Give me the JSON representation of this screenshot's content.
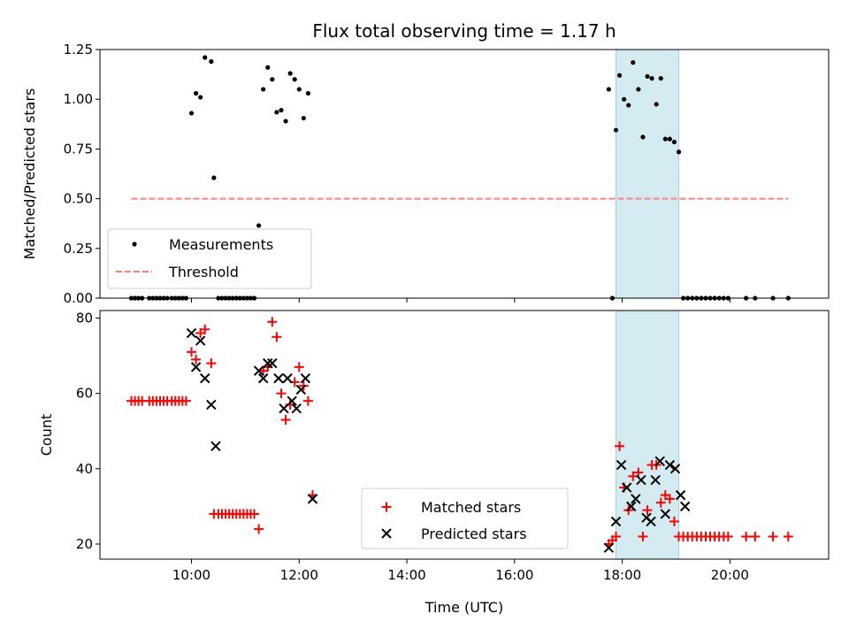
{
  "chart_data": [
    {
      "type": "scatter",
      "title": "Flux total observing time = 1.17 h",
      "xlabel": "",
      "ylabel": "Matched/Predicted stars",
      "xlim": [
        "08:18",
        "21:50"
      ],
      "ylim": [
        0,
        1.25
      ],
      "yticks": [
        "0.00",
        "0.25",
        "0.50",
        "0.75",
        "1.00",
        "1.25"
      ],
      "legend_position": "lower-left",
      "shaded_interval": [
        "17:53",
        "19:03"
      ],
      "shade_color": "#d5ebf2",
      "series": [
        {
          "name": "Measurements",
          "marker": "dot",
          "color": "#000000",
          "points": [
            [
              "08:53",
              0
            ],
            [
              "08:57",
              0
            ],
            [
              "09:01",
              0
            ],
            [
              "09:05",
              0
            ],
            [
              "09:13",
              0
            ],
            [
              "09:17",
              0
            ],
            [
              "09:21",
              0
            ],
            [
              "09:25",
              0
            ],
            [
              "09:29",
              0
            ],
            [
              "09:33",
              0
            ],
            [
              "09:38",
              0
            ],
            [
              "09:42",
              0
            ],
            [
              "09:46",
              0
            ],
            [
              "09:50",
              0
            ],
            [
              "09:54",
              0
            ],
            [
              "10:00",
              0.93
            ],
            [
              "10:05",
              1.03
            ],
            [
              "10:10",
              1.01
            ],
            [
              "10:15",
              1.21
            ],
            [
              "10:22",
              1.19
            ],
            [
              "10:25",
              0.605
            ],
            [
              "10:30",
              0
            ],
            [
              "10:34",
              0
            ],
            [
              "10:38",
              0
            ],
            [
              "10:42",
              0
            ],
            [
              "10:46",
              0
            ],
            [
              "10:50",
              0
            ],
            [
              "10:54",
              0
            ],
            [
              "10:58",
              0
            ],
            [
              "11:02",
              0
            ],
            [
              "11:06",
              0
            ],
            [
              "11:10",
              0
            ],
            [
              "11:15",
              0.365
            ],
            [
              "11:20",
              1.05
            ],
            [
              "11:25",
              1.16
            ],
            [
              "11:30",
              1.1
            ],
            [
              "11:35",
              0.935
            ],
            [
              "11:40",
              0.945
            ],
            [
              "11:45",
              0.89
            ],
            [
              "11:50",
              1.13
            ],
            [
              "11:55",
              1.1
            ],
            [
              "12:00",
              1.05
            ],
            [
              "12:05",
              0.905
            ],
            [
              "12:10",
              1.03
            ],
            [
              "17:45",
              1.05
            ],
            [
              "17:49",
              0
            ],
            [
              "17:53",
              0.845
            ],
            [
              "17:57",
              1.12
            ],
            [
              "18:02",
              1.0
            ],
            [
              "18:07",
              0.97
            ],
            [
              "18:12",
              1.185
            ],
            [
              "18:18",
              1.05
            ],
            [
              "18:23",
              0.81
            ],
            [
              "18:28",
              1.115
            ],
            [
              "18:33",
              1.105
            ],
            [
              "18:38",
              0.975
            ],
            [
              "18:43",
              1.105
            ],
            [
              "18:48",
              0.8
            ],
            [
              "18:53",
              0.8
            ],
            [
              "18:58",
              0.785
            ],
            [
              "19:03",
              0.735
            ],
            [
              "19:08",
              0
            ],
            [
              "19:13",
              0
            ],
            [
              "19:18",
              0
            ],
            [
              "19:23",
              0
            ],
            [
              "19:28",
              0
            ],
            [
              "19:33",
              0
            ],
            [
              "19:38",
              0
            ],
            [
              "19:43",
              0
            ],
            [
              "19:48",
              0
            ],
            [
              "19:53",
              0
            ],
            [
              "19:58",
              0
            ],
            [
              "20:18",
              0
            ],
            [
              "20:28",
              0
            ],
            [
              "20:48",
              0
            ],
            [
              "21:05",
              0
            ]
          ]
        },
        {
          "name": "Threshold",
          "marker": "dashed-line",
          "color": "#ff7f7f",
          "points": [
            [
              "08:53",
              0.5
            ],
            [
              "21:05",
              0.5
            ]
          ]
        }
      ]
    },
    {
      "type": "scatter",
      "title": "",
      "xlabel": "Time (UTC)",
      "ylabel": "Count",
      "xlim": [
        "08:18",
        "21:50"
      ],
      "ylim": [
        16,
        82
      ],
      "yticks": [
        "20",
        "40",
        "60",
        "80"
      ],
      "xticks": [
        "10:00",
        "12:00",
        "14:00",
        "16:00",
        "18:00",
        "20:00"
      ],
      "legend_position": "lower-center",
      "shaded_interval": [
        "17:53",
        "19:03"
      ],
      "shade_color": "#d5ebf2",
      "series": [
        {
          "name": "Matched stars",
          "marker": "plus",
          "color": "#ff0000",
          "points": [
            [
              "08:53",
              58
            ],
            [
              "08:57",
              58
            ],
            [
              "09:01",
              58
            ],
            [
              "09:05",
              58
            ],
            [
              "09:13",
              58
            ],
            [
              "09:17",
              58
            ],
            [
              "09:21",
              58
            ],
            [
              "09:25",
              58
            ],
            [
              "09:29",
              58
            ],
            [
              "09:33",
              58
            ],
            [
              "09:38",
              58
            ],
            [
              "09:42",
              58
            ],
            [
              "09:46",
              58
            ],
            [
              "09:50",
              58
            ],
            [
              "09:54",
              58
            ],
            [
              "10:00",
              71
            ],
            [
              "10:05",
              69
            ],
            [
              "10:10",
              76
            ],
            [
              "10:15",
              77
            ],
            [
              "10:22",
              68
            ],
            [
              "10:25",
              28
            ],
            [
              "10:30",
              28
            ],
            [
              "10:34",
              28
            ],
            [
              "10:38",
              28
            ],
            [
              "10:42",
              28
            ],
            [
              "10:46",
              28
            ],
            [
              "10:50",
              28
            ],
            [
              "10:54",
              28
            ],
            [
              "10:58",
              28
            ],
            [
              "11:02",
              28
            ],
            [
              "11:06",
              28
            ],
            [
              "11:10",
              28
            ],
            [
              "11:15",
              24
            ],
            [
              "11:20",
              66
            ],
            [
              "11:25",
              67
            ],
            [
              "11:30",
              79
            ],
            [
              "11:35",
              75
            ],
            [
              "11:40",
              60
            ],
            [
              "11:45",
              53
            ],
            [
              "11:50",
              57
            ],
            [
              "11:55",
              63
            ],
            [
              "12:00",
              67
            ],
            [
              "12:05",
              62
            ],
            [
              "12:10",
              58
            ],
            [
              "12:15",
              33
            ],
            [
              "17:45",
              20
            ],
            [
              "17:49",
              21
            ],
            [
              "17:53",
              22
            ],
            [
              "17:57",
              46
            ],
            [
              "18:02",
              35
            ],
            [
              "18:07",
              29
            ],
            [
              "18:12",
              38
            ],
            [
              "18:18",
              39
            ],
            [
              "18:23",
              22
            ],
            [
              "18:28",
              29
            ],
            [
              "18:33",
              41
            ],
            [
              "18:38",
              41
            ],
            [
              "18:43",
              31
            ],
            [
              "18:48",
              33
            ],
            [
              "18:53",
              32
            ],
            [
              "18:58",
              26
            ],
            [
              "19:03",
              22
            ],
            [
              "19:08",
              22
            ],
            [
              "19:13",
              22
            ],
            [
              "19:18",
              22
            ],
            [
              "19:23",
              22
            ],
            [
              "19:28",
              22
            ],
            [
              "19:33",
              22
            ],
            [
              "19:38",
              22
            ],
            [
              "19:43",
              22
            ],
            [
              "19:48",
              22
            ],
            [
              "19:53",
              22
            ],
            [
              "19:58",
              22
            ],
            [
              "20:18",
              22
            ],
            [
              "20:28",
              22
            ],
            [
              "20:48",
              22
            ],
            [
              "21:05",
              22
            ]
          ]
        },
        {
          "name": "Predicted stars",
          "marker": "x",
          "color": "#000000",
          "points": [
            [
              "10:00",
              76
            ],
            [
              "10:05",
              67
            ],
            [
              "10:10",
              74
            ],
            [
              "10:15",
              64
            ],
            [
              "10:22",
              57
            ],
            [
              "10:27",
              46
            ],
            [
              "11:15",
              66
            ],
            [
              "11:20",
              64
            ],
            [
              "11:25",
              68
            ],
            [
              "11:30",
              68
            ],
            [
              "11:37",
              64
            ],
            [
              "11:43",
              56
            ],
            [
              "11:47",
              64
            ],
            [
              "11:52",
              58
            ],
            [
              "11:57",
              56
            ],
            [
              "12:02",
              61
            ],
            [
              "12:07",
              64
            ],
            [
              "12:15",
              32
            ],
            [
              "17:45",
              19
            ],
            [
              "17:53",
              26
            ],
            [
              "17:59",
              41
            ],
            [
              "18:05",
              35
            ],
            [
              "18:10",
              30
            ],
            [
              "18:15",
              32
            ],
            [
              "18:21",
              37
            ],
            [
              "18:27",
              27
            ],
            [
              "18:32",
              26
            ],
            [
              "18:37",
              37
            ],
            [
              "18:42",
              42
            ],
            [
              "18:48",
              28
            ],
            [
              "18:53",
              41
            ],
            [
              "18:59",
              40
            ],
            [
              "19:05",
              33
            ],
            [
              "19:10",
              30
            ]
          ]
        }
      ]
    }
  ]
}
